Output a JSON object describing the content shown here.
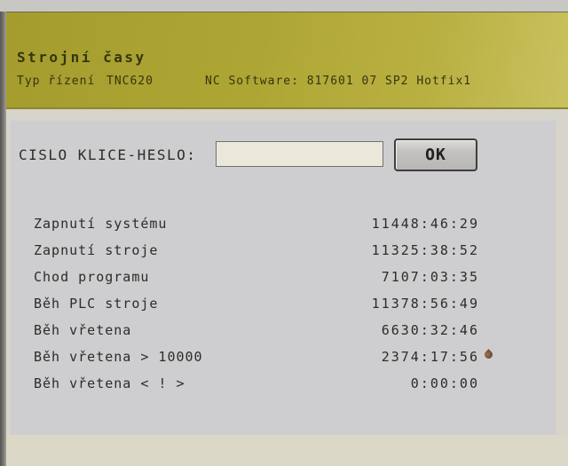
{
  "header": {
    "title": "Strojní časy",
    "control_type_label": "Typ řízení",
    "control_type_value": "TNC620",
    "software_label": "NC Software:",
    "software_value": "817601 07 SP2 Hotfix1"
  },
  "key_form": {
    "label": "CISLO KLICE-HESLO:",
    "input_value": "",
    "ok_button_label": "OK"
  },
  "machine_times": {
    "rows": [
      {
        "label": "Zapnutí systému",
        "value": "11448:46:29"
      },
      {
        "label": "Zapnutí stroje",
        "value": "11325:38:52"
      },
      {
        "label": "Chod programu",
        "value": "7107:03:35"
      },
      {
        "label": "Běh PLC stroje",
        "value": "11378:56:49"
      },
      {
        "label": "Běh vřetena",
        "value": "6630:32:46"
      },
      {
        "label": "Běh vřetena > 10000",
        "value": "2374:17:56"
      },
      {
        "label": "Běh vřetena < ! >",
        "value": "0:00:00"
      }
    ]
  },
  "colors": {
    "header_bg": "#aea634",
    "header_text": "#35350f",
    "content_bg": "#d6d4cb",
    "panel_bg": "#cecdd0",
    "text": "#2c2c28",
    "input_bg": "#eae8db",
    "button_bg": "#c3c1bf",
    "stain_droplet": "#6e4d30"
  }
}
